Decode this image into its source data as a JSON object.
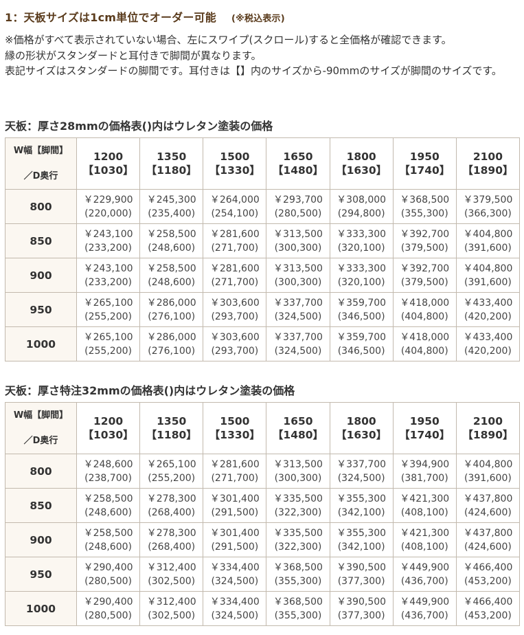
{
  "heading": {
    "title": "1：天板サイズは1cm単位でオーダー可能",
    "tax_note": "(※税込表示)"
  },
  "notes": [
    "※価格がすべて表示されていない場合、左にスワイプ(スクロール)すると全価格が確認できます。",
    "縁の形状がスタンダードと耳付きで脚間が異なります。",
    "表記サイズはスタンダードの脚間です。耳付きは【】内のサイズから-90mmのサイズが脚間のサイズです。"
  ],
  "tables": [
    {
      "title": "天板：厚さ28mmの価格表()内はウレタン塗装の価格",
      "corner_top": "W幅【脚間】",
      "corner_bottom": "／D奥行",
      "columns": [
        {
          "w": "1200",
          "leg": "【1030】"
        },
        {
          "w": "1350",
          "leg": "【1180】"
        },
        {
          "w": "1500",
          "leg": "【1330】"
        },
        {
          "w": "1650",
          "leg": "【1480】"
        },
        {
          "w": "1800",
          "leg": "【1630】"
        },
        {
          "w": "1950",
          "leg": "【1740】"
        },
        {
          "w": "2100",
          "leg": "【1890】"
        }
      ],
      "rows": [
        {
          "d": "800",
          "cells": [
            {
              "price": "￥229,900",
              "urethane": "(220,000)"
            },
            {
              "price": "￥245,300",
              "urethane": "(235,400)"
            },
            {
              "price": "￥264,000",
              "urethane": "(254,100)"
            },
            {
              "price": "￥293,700",
              "urethane": "(280,500)"
            },
            {
              "price": "￥308,000",
              "urethane": "(294,800)"
            },
            {
              "price": "￥368,500",
              "urethane": "(355,300)"
            },
            {
              "price": "￥379,500",
              "urethane": "(366,300)"
            }
          ]
        },
        {
          "d": "850",
          "cells": [
            {
              "price": "￥243,100",
              "urethane": "(233,200)"
            },
            {
              "price": "￥258,500",
              "urethane": "(248,600)"
            },
            {
              "price": "￥281,600",
              "urethane": "(271,700)"
            },
            {
              "price": "￥313,500",
              "urethane": "(300,300)"
            },
            {
              "price": "￥333,300",
              "urethane": "(320,100)"
            },
            {
              "price": "￥392,700",
              "urethane": "(379,500)"
            },
            {
              "price": "￥404,800",
              "urethane": "(391,600)"
            }
          ]
        },
        {
          "d": "900",
          "cells": [
            {
              "price": "￥243,100",
              "urethane": "(233,200)"
            },
            {
              "price": "￥258,500",
              "urethane": "(248,600)"
            },
            {
              "price": "￥281,600",
              "urethane": "(271,700)"
            },
            {
              "price": "￥313,500",
              "urethane": "(300,300)"
            },
            {
              "price": "￥333,300",
              "urethane": "(320,100)"
            },
            {
              "price": "￥392,700",
              "urethane": "(379,500)"
            },
            {
              "price": "￥404,800",
              "urethane": "(391,600)"
            }
          ]
        },
        {
          "d": "950",
          "cells": [
            {
              "price": "￥265,100",
              "urethane": "(255,200)"
            },
            {
              "price": "￥286,000",
              "urethane": "(276,100)"
            },
            {
              "price": "￥303,600",
              "urethane": "(293,700)"
            },
            {
              "price": "￥337,700",
              "urethane": "(324,500)"
            },
            {
              "price": "￥359,700",
              "urethane": "(346,500)"
            },
            {
              "price": "￥418,000",
              "urethane": "(404,800)"
            },
            {
              "price": "￥433,400",
              "urethane": "(420,200)"
            }
          ]
        },
        {
          "d": "1000",
          "cells": [
            {
              "price": "￥265,100",
              "urethane": "(255,200)"
            },
            {
              "price": "￥286,000",
              "urethane": "(276,100)"
            },
            {
              "price": "￥303,600",
              "urethane": "(293,700)"
            },
            {
              "price": "￥337,700",
              "urethane": "(324,500)"
            },
            {
              "price": "￥359,700",
              "urethane": "(346,500)"
            },
            {
              "price": "￥418,000",
              "urethane": "(404,800)"
            },
            {
              "price": "￥433,400",
              "urethane": "(420,200)"
            }
          ]
        }
      ]
    },
    {
      "title": "天板：厚さ特注32mmの価格表()内はウレタン塗装の価格",
      "corner_top": "W幅【脚間】",
      "corner_bottom": "／D奥行",
      "columns": [
        {
          "w": "1200",
          "leg": "【1030】"
        },
        {
          "w": "1350",
          "leg": "【1180】"
        },
        {
          "w": "1500",
          "leg": "【1330】"
        },
        {
          "w": "1650",
          "leg": "【1480】"
        },
        {
          "w": "1800",
          "leg": "【1630】"
        },
        {
          "w": "1950",
          "leg": "【1740】"
        },
        {
          "w": "2100",
          "leg": "【1890】"
        }
      ],
      "rows": [
        {
          "d": "800",
          "cells": [
            {
              "price": "￥248,600",
              "urethane": "(238,700)"
            },
            {
              "price": "￥265,100",
              "urethane": "(255,200)"
            },
            {
              "price": "￥281,600",
              "urethane": "(271,700)"
            },
            {
              "price": "￥313,500",
              "urethane": "(300,300)"
            },
            {
              "price": "￥337,700",
              "urethane": "(324,500)"
            },
            {
              "price": "￥394,900",
              "urethane": "(381,700)"
            },
            {
              "price": "￥404,800",
              "urethane": "(391,600)"
            }
          ]
        },
        {
          "d": "850",
          "cells": [
            {
              "price": "￥258,500",
              "urethane": "(248,600)"
            },
            {
              "price": "￥278,300",
              "urethane": "(268,400)"
            },
            {
              "price": "￥301,400",
              "urethane": "(291,500)"
            },
            {
              "price": "￥335,500",
              "urethane": "(322,300)"
            },
            {
              "price": "￥355,300",
              "urethane": "(342,100)"
            },
            {
              "price": "￥421,300",
              "urethane": "(408,100)"
            },
            {
              "price": "￥437,800",
              "urethane": "(424,600)"
            }
          ]
        },
        {
          "d": "900",
          "cells": [
            {
              "price": "￥258,500",
              "urethane": "(248,600)"
            },
            {
              "price": "￥278,300",
              "urethane": "(268,400)"
            },
            {
              "price": "￥301,400",
              "urethane": "(291,500)"
            },
            {
              "price": "￥335,500",
              "urethane": "(322,300)"
            },
            {
              "price": "￥355,300",
              "urethane": "(342,100)"
            },
            {
              "price": "￥421,300",
              "urethane": "(408,100)"
            },
            {
              "price": "￥437,800",
              "urethane": "(424,600)"
            }
          ]
        },
        {
          "d": "950",
          "cells": [
            {
              "price": "￥290,400",
              "urethane": "(280,500)"
            },
            {
              "price": "￥312,400",
              "urethane": "(302,500)"
            },
            {
              "price": "￥334,400",
              "urethane": "(324,500)"
            },
            {
              "price": "￥368,500",
              "urethane": "(355,300)"
            },
            {
              "price": "￥390,500",
              "urethane": "(377,300)"
            },
            {
              "price": "￥449,900",
              "urethane": "(436,700)"
            },
            {
              "price": "￥466,400",
              "urethane": "(453,200)"
            }
          ]
        },
        {
          "d": "1000",
          "cells": [
            {
              "price": "￥290,400",
              "urethane": "(280,500)"
            },
            {
              "price": "￥312,400",
              "urethane": "(302,500)"
            },
            {
              "price": "￥334,400",
              "urethane": "(324,500)"
            },
            {
              "price": "￥368,500",
              "urethane": "(355,300)"
            },
            {
              "price": "￥390,500",
              "urethane": "(377,300)"
            },
            {
              "price": "￥449,900",
              "urethane": "(436,700)"
            },
            {
              "price": "￥466,400",
              "urethane": "(453,200)"
            }
          ]
        }
      ]
    }
  ]
}
